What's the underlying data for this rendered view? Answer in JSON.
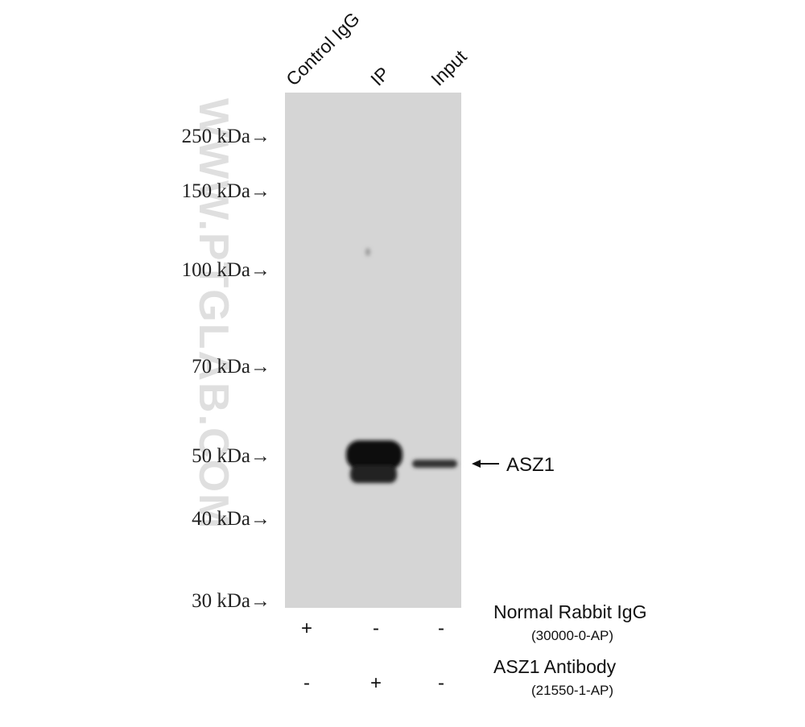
{
  "lanes": [
    "Control IgG",
    "IP",
    "Input"
  ],
  "markers": [
    "250 kDa→",
    "150 kDa→",
    "100 kDa→",
    "70 kDa→",
    "50 kDa→",
    "40 kDa→",
    "30 kDa→"
  ],
  "band_label": "ASZ1",
  "watermark": "WWW.PTGLAB.COM",
  "conditions": [
    {
      "name": "Normal Rabbit IgG",
      "catalog": "(30000-0-AP)",
      "signs": [
        "+",
        "-",
        "-"
      ]
    },
    {
      "name": "ASZ1 Antibody",
      "catalog": "(21550-1-AP)",
      "signs": [
        "-",
        "+",
        "-"
      ]
    }
  ]
}
